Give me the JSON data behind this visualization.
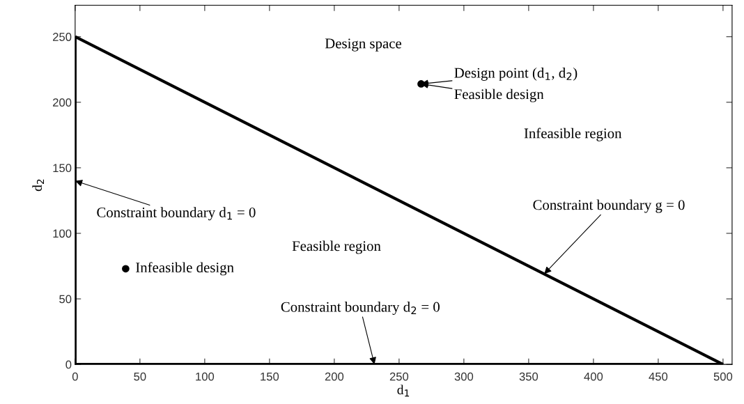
{
  "chart_data": {
    "type": "line",
    "xlabel": "d$_{1}$",
    "ylabel": "d$_{2}$",
    "xlim": [
      0,
      507
    ],
    "ylim": [
      0,
      274
    ],
    "xticks": [
      0,
      50,
      100,
      150,
      200,
      250,
      300,
      350,
      400,
      450,
      500
    ],
    "yticks": [
      0,
      50,
      100,
      150,
      200,
      250
    ],
    "grid": false,
    "legend": false,
    "series": [
      {
        "color": "#000000",
        "x": [
          0,
          500
        ],
        "values": [
          250,
          0
        ]
      },
      {
        "color": "#000000",
        "x": [
          0,
          0
        ],
        "values": [
          0,
          250
        ]
      },
      {
        "color": "#000000",
        "x": [
          0,
          500
        ],
        "values": [
          0,
          0
        ]
      },
      {
        "type": "scatter",
        "color": "#000000",
        "marker": "circle",
        "x": [
          267,
          39
        ],
        "values": [
          214,
          73
        ]
      }
    ],
    "annotations": [
      {
        "text": "Design point (d$_{1}$, d$_{2}$)",
        "x": 267,
        "y": 214
      },
      {
        "text": "Feasible design",
        "x": 267,
        "y": 214
      },
      {
        "text": "Infeasible design",
        "x": 39,
        "y": 73
      },
      {
        "text": "Constraint boundary d$_{1}$ = 0",
        "x": 0,
        "y": 140
      },
      {
        "text": "Constraint boundary d$_{2}$ = 0",
        "x": 231,
        "y": 0
      },
      {
        "text": "Constraint boundary g = 0",
        "x": 362,
        "y": 69
      },
      "Design space",
      "Infeasible region",
      "Feasible region"
    ]
  }
}
